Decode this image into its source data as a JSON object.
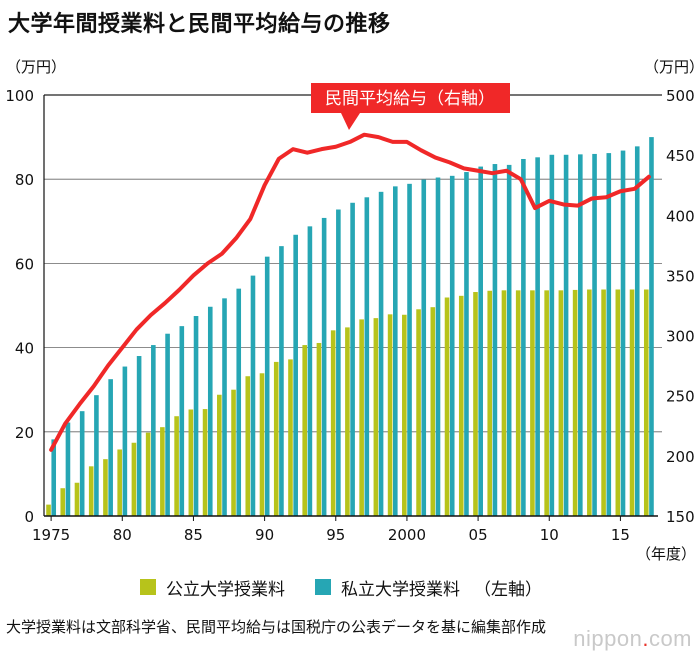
{
  "title": "大学年間授業料と民間平均給与の推移",
  "note": "大学授業料は文部科学省、民間平均給与は国税庁の公表データを基に編集部作成",
  "brand": {
    "pre": "nippon",
    "dot": ".",
    "post": "com"
  },
  "legend": {
    "public": "公立大学授業料",
    "private": "私立大学授業料",
    "private_suffix": "（左軸）"
  },
  "colors": {
    "public": "#b7c31b",
    "private": "#26a6b4",
    "salary": "#f02828",
    "callout_bg": "#f02828"
  },
  "chart_data": {
    "type": "bar+line",
    "title": "大学年間授業料と民間平均給与の推移",
    "left_axis": {
      "unit_label": "（万円）",
      "min": 0,
      "max": 100,
      "ticks": [
        0,
        20,
        40,
        60,
        80,
        100
      ]
    },
    "right_axis": {
      "unit_label": "（万円）",
      "min": 150,
      "max": 500,
      "ticks": [
        150,
        200,
        250,
        300,
        350,
        400,
        450,
        500
      ]
    },
    "x_axis": {
      "tick_labels": [
        "1975",
        "80",
        "85",
        "90",
        "95",
        "2000",
        "05",
        "10",
        "15"
      ],
      "tick_years": [
        1975,
        1980,
        1985,
        1990,
        1995,
        2000,
        2005,
        2010,
        2015
      ],
      "unit_label": "（年度）"
    },
    "years": [
      1975,
      1976,
      1977,
      1978,
      1979,
      1980,
      1981,
      1982,
      1983,
      1984,
      1985,
      1986,
      1987,
      1988,
      1989,
      1990,
      1991,
      1992,
      1993,
      1994,
      1995,
      1996,
      1997,
      1998,
      1999,
      2000,
      2001,
      2002,
      2003,
      2004,
      2005,
      2006,
      2007,
      2008,
      2009,
      2010,
      2011,
      2012,
      2013,
      2014,
      2015,
      2016,
      2017
    ],
    "series": [
      {
        "name": "公立大学授業料",
        "axis": "left",
        "kind": "bar",
        "values": [
          2.7,
          6.6,
          7.9,
          11.8,
          13.5,
          15.8,
          17.4,
          19.8,
          21.1,
          23.7,
          25.3,
          25.4,
          28.8,
          30.0,
          33.2,
          33.9,
          36.6,
          37.2,
          40.6,
          41.1,
          44.1,
          44.8,
          46.7,
          47.0,
          47.9,
          47.8,
          49.1,
          49.6,
          51.9,
          52.3,
          53.2,
          53.5,
          53.6,
          53.6,
          53.6,
          53.6,
          53.6,
          53.7,
          53.8,
          53.8,
          53.8,
          53.8,
          53.8
        ]
      },
      {
        "name": "私立大学授業料",
        "axis": "left",
        "kind": "bar",
        "values": [
          18.2,
          22.2,
          24.9,
          28.7,
          32.5,
          35.5,
          38.0,
          40.6,
          43.3,
          45.1,
          47.5,
          49.7,
          51.7,
          54.0,
          57.1,
          61.6,
          64.1,
          66.8,
          68.8,
          70.8,
          72.8,
          74.4,
          75.7,
          77.0,
          78.3,
          78.9,
          79.9,
          80.4,
          80.8,
          81.7,
          83.0,
          83.6,
          83.4,
          84.8,
          85.2,
          85.8,
          85.8,
          85.9,
          86.0,
          86.2,
          86.8,
          87.8,
          90.0
        ]
      },
      {
        "name": "民間平均給与（右軸）",
        "axis": "right",
        "kind": "line",
        "values": [
          205,
          227,
          243,
          258,
          275,
          290,
          305,
          317,
          327,
          338,
          350,
          360,
          368,
          381,
          397,
          425,
          447,
          455,
          452,
          455,
          457,
          461,
          467,
          465,
          461,
          461,
          454,
          448,
          444,
          439,
          437,
          435,
          437,
          430,
          406,
          412,
          409,
          408,
          414,
          415,
          420,
          422,
          432
        ]
      }
    ],
    "annotation": "民間平均給与（右軸）"
  }
}
